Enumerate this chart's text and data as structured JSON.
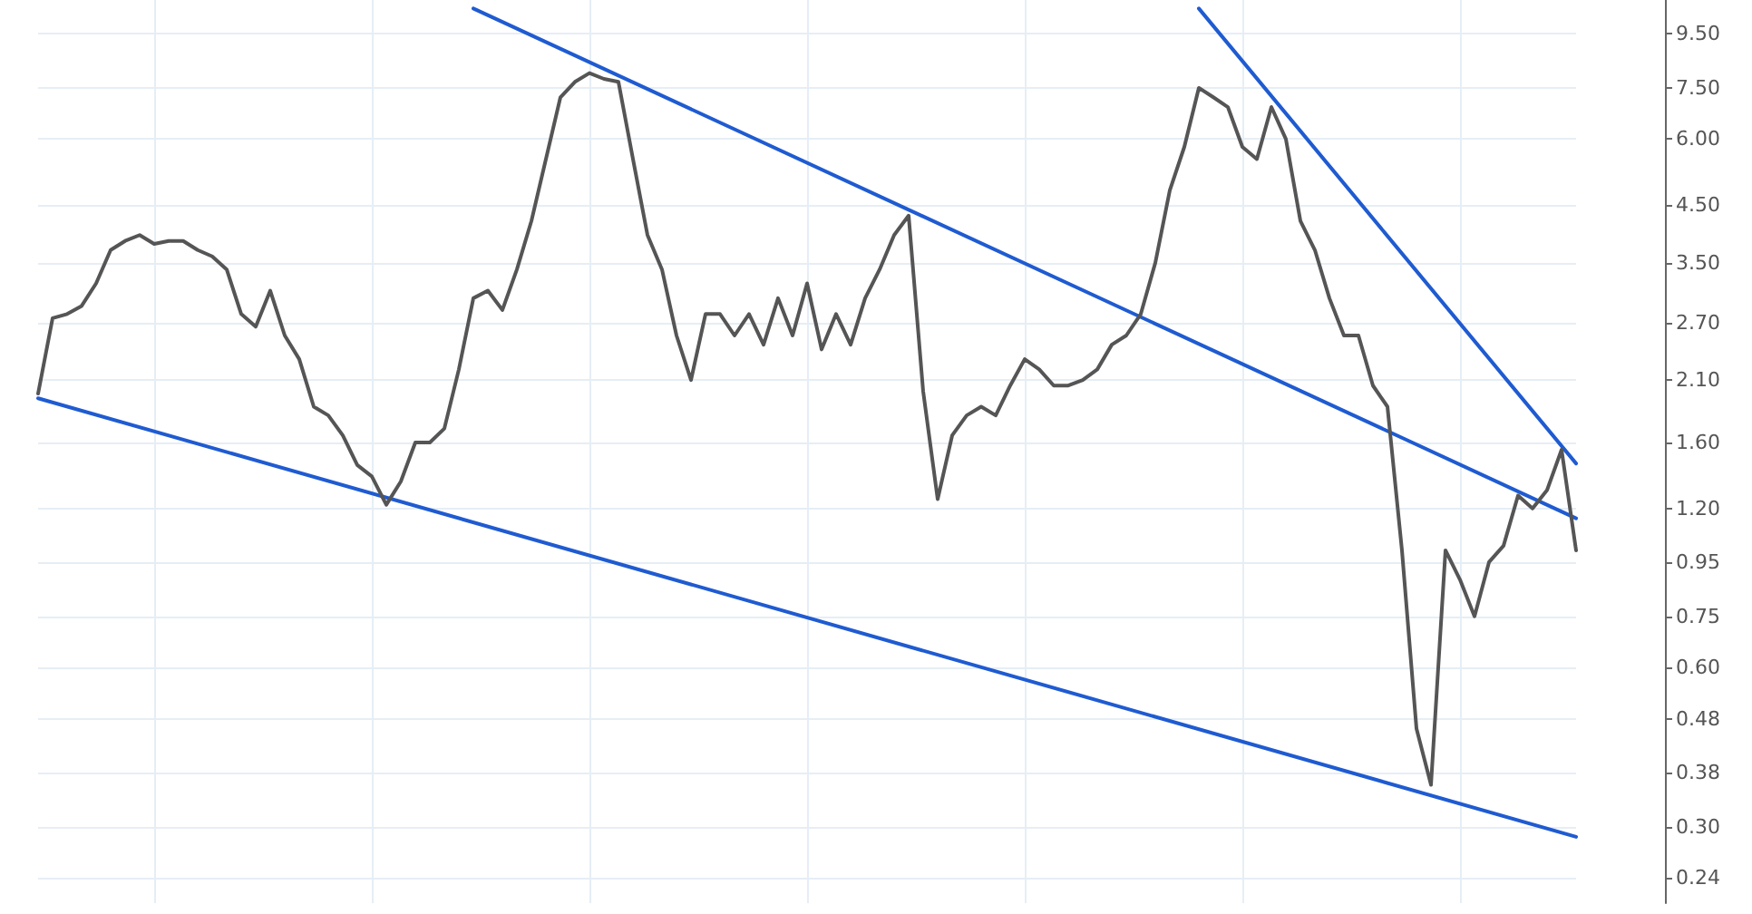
{
  "chart_data": {
    "type": "line",
    "log": "y",
    "grid": true,
    "marker": "none",
    "line_style": "solid",
    "tick_labels": "y",
    "ylim": [
      0.215,
      11
    ],
    "yticks": [
      {
        "value": 0.24,
        "label": "0.24"
      },
      {
        "value": 0.3,
        "label": "0.30"
      },
      {
        "value": 0.38,
        "label": "0.38"
      },
      {
        "value": 0.48,
        "label": "0.48"
      },
      {
        "value": 0.6,
        "label": "0.60"
      },
      {
        "value": 0.75,
        "label": "0.75"
      },
      {
        "value": 0.95,
        "label": "0.95"
      },
      {
        "value": 1.2,
        "label": "1.20"
      },
      {
        "value": 1.6,
        "label": "1.60"
      },
      {
        "value": 2.1,
        "label": "2.10"
      },
      {
        "value": 2.7,
        "label": "2.70"
      },
      {
        "value": 3.5,
        "label": "3.50"
      },
      {
        "value": 4.5,
        "label": "4.50"
      },
      {
        "value": 6,
        "label": "6.00"
      },
      {
        "value": 7.5,
        "label": "7.50"
      },
      {
        "value": 9.5,
        "label": "9.50"
      }
    ],
    "categories": [
      null,
      null,
      null,
      null,
      null,
      null,
      null,
      null,
      null,
      null,
      null,
      null,
      null,
      null,
      null,
      null,
      null,
      null,
      null,
      null,
      null,
      null,
      null,
      null,
      null,
      null,
      null,
      null,
      null,
      null,
      null,
      null,
      null,
      null,
      null,
      null,
      null,
      null,
      null,
      null,
      null,
      null,
      null,
      null,
      null,
      null,
      null,
      null,
      null,
      null,
      null,
      null,
      null,
      null,
      null,
      null,
      null,
      null,
      null,
      null,
      null,
      null,
      null,
      null,
      null,
      null,
      null,
      null,
      null,
      null,
      null,
      null,
      null,
      null,
      null,
      null,
      null,
      null,
      null,
      null,
      null,
      null,
      null,
      null,
      null,
      null,
      null,
      null,
      null,
      null,
      null,
      null,
      null,
      null,
      null,
      null,
      null,
      null,
      null,
      null,
      null,
      null,
      null,
      null,
      null,
      null,
      null
    ],
    "series": [
      {
        "color": "#555555",
        "values": [
          1.98,
          2.75,
          2.8,
          2.9,
          3.2,
          3.7,
          3.85,
          3.95,
          3.8,
          3.85,
          3.85,
          3.7,
          3.6,
          3.4,
          2.8,
          2.65,
          3.1,
          2.55,
          2.3,
          1.87,
          1.8,
          1.65,
          1.45,
          1.38,
          1.22,
          1.35,
          1.6,
          1.6,
          1.7,
          2.2,
          3.0,
          3.1,
          2.85,
          3.4,
          4.2,
          5.5,
          7.2,
          7.7,
          8.0,
          7.8,
          7.7,
          5.5,
          3.95,
          3.4,
          2.55,
          2.1,
          2.8,
          2.8,
          2.55,
          2.8,
          2.45,
          3.0,
          2.55,
          3.2,
          2.4,
          2.8,
          2.45,
          3.0,
          3.4,
          3.95,
          4.3,
          2.0,
          1.25,
          1.65,
          1.8,
          1.87,
          1.8,
          2.05,
          2.3,
          2.2,
          2.05,
          2.05,
          2.1,
          2.2,
          2.45,
          2.55,
          2.8,
          3.5,
          4.8,
          5.8,
          7.5,
          7.2,
          6.9,
          5.8,
          5.5,
          6.9,
          6.0,
          4.2,
          3.7,
          3.0,
          2.55,
          2.55,
          2.05,
          1.87,
          1.0,
          0.46,
          0.36,
          1.0,
          0.88,
          0.75,
          0.95,
          1.02,
          1.27,
          1.2,
          1.3,
          1.55,
          1.0
        ]
      },
      {
        "color": "#1f5bd1",
        "values": [
          1.94,
          null,
          null,
          null,
          null,
          null,
          null,
          null,
          null,
          null,
          null,
          null,
          null,
          null,
          null,
          null,
          null,
          null,
          null,
          null,
          null,
          null,
          null,
          null,
          null,
          null,
          null,
          null,
          null,
          null,
          null,
          null,
          null,
          null,
          null,
          null,
          null,
          null,
          null,
          null,
          null,
          null,
          null,
          null,
          null,
          null,
          null,
          null,
          null,
          null,
          null,
          null,
          null,
          null,
          null,
          null,
          null,
          null,
          null,
          null,
          null,
          null,
          null,
          null,
          null,
          null,
          null,
          null,
          null,
          null,
          null,
          null,
          null,
          null,
          null,
          null,
          null,
          null,
          null,
          null,
          null,
          null,
          null,
          null,
          null,
          null,
          null,
          null,
          null,
          null,
          null,
          null,
          null,
          null,
          null,
          null,
          null,
          null,
          null,
          null,
          null,
          null,
          null,
          null,
          null,
          null,
          0.287
        ]
      },
      {
        "color": "#1f5bd1",
        "values": [
          null,
          null,
          null,
          null,
          null,
          null,
          null,
          null,
          null,
          null,
          null,
          null,
          null,
          null,
          null,
          null,
          null,
          null,
          null,
          null,
          null,
          null,
          null,
          null,
          null,
          null,
          null,
          null,
          null,
          null,
          10.6,
          null,
          null,
          null,
          null,
          null,
          null,
          null,
          null,
          null,
          null,
          null,
          null,
          null,
          null,
          null,
          null,
          null,
          null,
          null,
          null,
          null,
          null,
          null,
          null,
          null,
          null,
          null,
          null,
          null,
          null,
          null,
          null,
          null,
          null,
          null,
          null,
          null,
          null,
          null,
          null,
          null,
          null,
          null,
          null,
          null,
          null,
          null,
          null,
          null,
          null,
          null,
          null,
          null,
          null,
          null,
          null,
          null,
          null,
          null,
          null,
          null,
          null,
          null,
          null,
          null,
          null,
          null,
          null,
          null,
          null,
          null,
          null,
          null,
          null,
          null,
          1.15
        ]
      },
      {
        "color": "#1f5bd1",
        "values": [
          null,
          null,
          null,
          null,
          null,
          null,
          null,
          null,
          null,
          null,
          null,
          null,
          null,
          null,
          null,
          null,
          null,
          null,
          null,
          null,
          null,
          null,
          null,
          null,
          null,
          null,
          null,
          null,
          null,
          null,
          null,
          null,
          null,
          null,
          null,
          null,
          null,
          null,
          null,
          null,
          null,
          null,
          null,
          null,
          null,
          null,
          null,
          null,
          null,
          null,
          null,
          null,
          null,
          null,
          null,
          null,
          null,
          null,
          null,
          null,
          null,
          null,
          null,
          null,
          null,
          null,
          null,
          null,
          null,
          null,
          null,
          null,
          null,
          null,
          null,
          null,
          null,
          null,
          null,
          null,
          10.6,
          null,
          null,
          null,
          null,
          null,
          null,
          null,
          null,
          null,
          null,
          null,
          null,
          null,
          null,
          null,
          null,
          null,
          null,
          null,
          null,
          null,
          null,
          null,
          null,
          null,
          1.46
        ]
      }
    ]
  }
}
